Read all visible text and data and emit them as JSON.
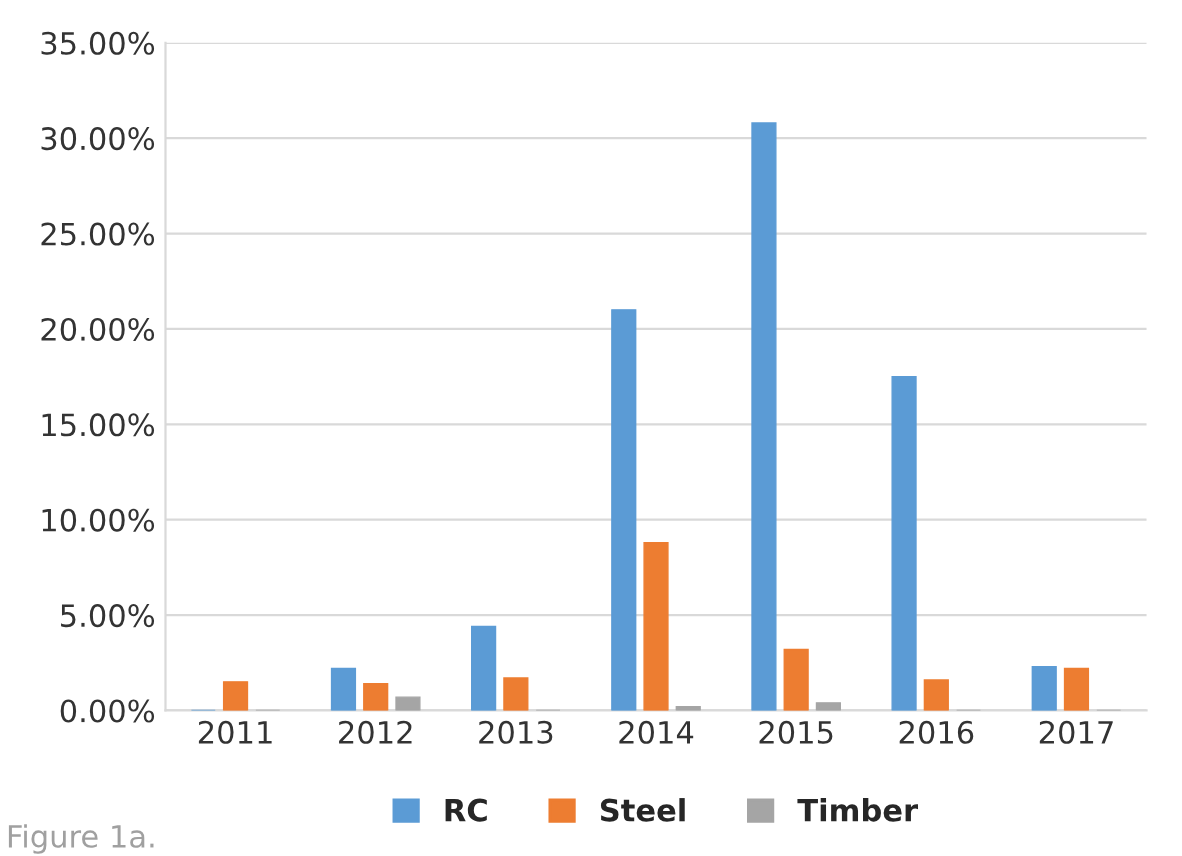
{
  "chart_data": {
    "type": "bar",
    "categories": [
      "2011",
      "2012",
      "2013",
      "2014",
      "2015",
      "2016",
      "2017"
    ],
    "series": [
      {
        "name": "RC",
        "color": "#5b9bd5",
        "values": [
          0,
          2.2,
          4.4,
          21.0,
          30.8,
          17.5,
          2.3
        ]
      },
      {
        "name": "Steel",
        "color": "#ed7d31",
        "values": [
          1.5,
          1.4,
          1.7,
          8.8,
          3.2,
          1.6,
          2.2
        ]
      },
      {
        "name": "Timber",
        "color": "#a5a5a5",
        "values": [
          0,
          0.7,
          0,
          0.2,
          0.4,
          0,
          0
        ]
      }
    ],
    "ylim": [
      0,
      35
    ],
    "yticks": [
      {
        "value": 0,
        "label": "0.00%"
      },
      {
        "value": 5,
        "label": "5.00%"
      },
      {
        "value": 10,
        "label": "10.00%"
      },
      {
        "value": 15,
        "label": "15.00%"
      },
      {
        "value": 20,
        "label": "20.00%"
      },
      {
        "value": 25,
        "label": "25.00%"
      },
      {
        "value": 30,
        "label": "30.00%"
      },
      {
        "value": 35,
        "label": "35.00%"
      }
    ],
    "grid": "y",
    "legend": "bottom",
    "annotations": [
      "Figure 1a."
    ]
  }
}
